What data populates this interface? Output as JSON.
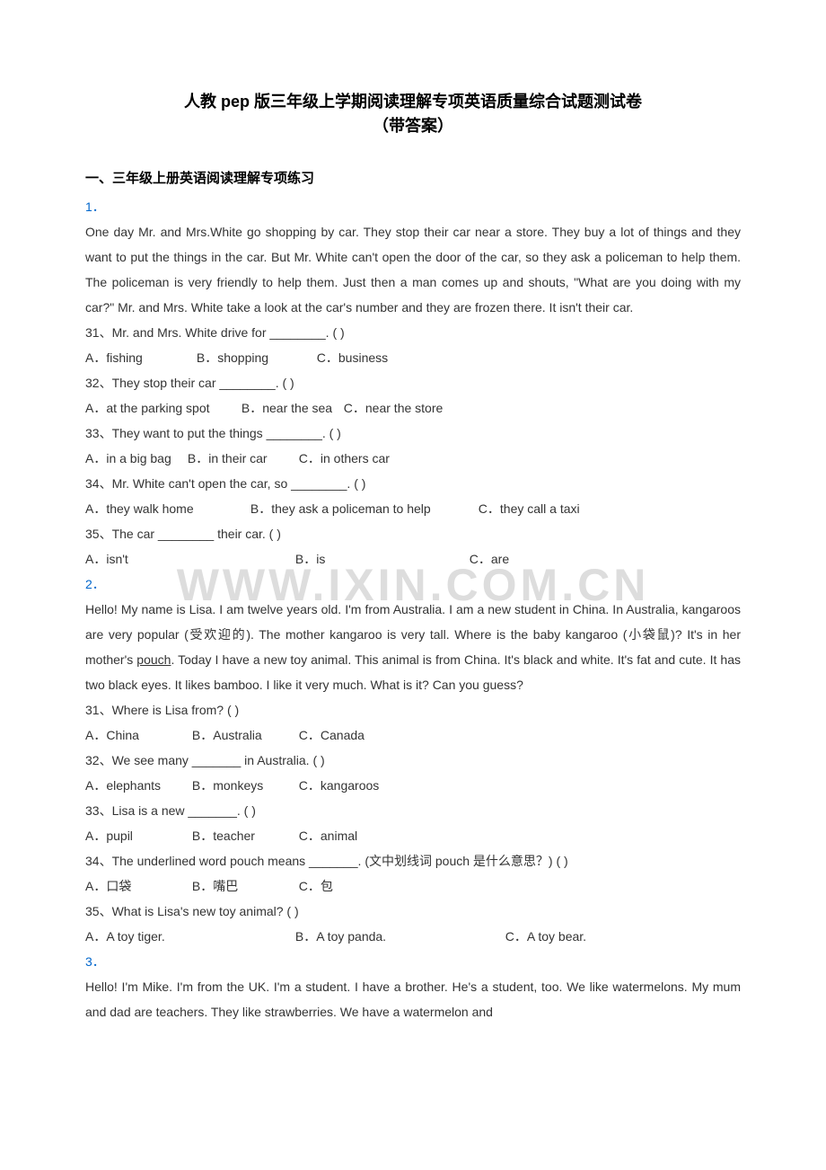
{
  "title_line1": "人教 pep 版三年级上学期阅读理解专项英语质量综合试题测试卷",
  "title_line2": "（带答案）",
  "section_heading": "一、三年级上册英语阅读理解专项练习",
  "watermark": "WWW.IXIN.COM.CN",
  "q1": {
    "num": "1．",
    "passage": "One day Mr. and Mrs.White go shopping by car. They stop their car near a store. They buy a lot of things and they want to put the things in the car. But Mr. White can't open the door of the car, so they ask a policeman to help them. The policeman is very friendly to help them. Just then a man comes up and shouts, \"What are you doing with my car?\" Mr. and Mrs. White take a look at the car's number and they are frozen there. It isn't their car.",
    "items": [
      {
        "q": "31、Mr. and Mrs. White drive for ________. (    )",
        "a": "A．fishing",
        "b": "B．shopping",
        "c": "C．business",
        "wa": "120px",
        "wb": "130px",
        "wc": ""
      },
      {
        "q": "32、They stop their car ________. (    )",
        "a": "A．at the parking spot",
        "b": "B．near the sea",
        "c": "C．near the store",
        "wa": "170px",
        "wb": "110px",
        "wc": ""
      },
      {
        "q": "33、They want to put the things ________. (    )",
        "a": "A．in a big bag",
        "b": "B．in their car",
        "c": "C．in others car",
        "wa": "110px",
        "wb": "120px",
        "wc": ""
      },
      {
        "q": "34、Mr. White can't open the car, so ________. (    )",
        "a": "A．they walk home",
        "b": "B．they ask a policeman to help",
        "c": "C．they call a taxi",
        "wa": "180px",
        "wb": "250px",
        "wc": ""
      },
      {
        "q": "35、The car ________ their car. (    )",
        "a": "A．isn't",
        "b": "B．is",
        "c": "C．are",
        "wa": "230px",
        "wb": "190px",
        "wc": ""
      }
    ]
  },
  "q2": {
    "num": "2．",
    "passage_pre": "Hello! My name is Lisa. I am twelve years old. I'm from Australia. I am a new student in China. In Australia, kangaroos are very popular (受欢迎的). The mother kangaroo is very tall. Where is the baby kangaroo (小袋鼠)? It's in her mother's ",
    "passage_u": "pouch",
    "passage_post": ". Today I have a new toy animal. This animal is from China. It's black and white. It's fat and cute. It has two black eyes. It likes bamboo. I like it very much. What is it? Can you guess?",
    "items": [
      {
        "q": "31、Where is Lisa from? (    )",
        "a": "A．China",
        "b": "B．Australia",
        "c": "C．Canada",
        "wa": "115px",
        "wb": "115px",
        "wc": ""
      },
      {
        "q": "32、We see many _______ in Australia. (    )",
        "a": "A．elephants",
        "b": "B．monkeys",
        "c": "C．kangaroos",
        "wa": "115px",
        "wb": "115px",
        "wc": ""
      },
      {
        "q": "33、Lisa is a new _______. (    )",
        "a": "A．pupil",
        "b": "B．teacher",
        "c": "C．animal",
        "wa": "115px",
        "wb": "115px",
        "wc": ""
      },
      {
        "q": "34、The underlined word pouch means _______. (文中划线词 pouch 是什么意思？) (    )",
        "a": "A．口袋",
        "b": "B．嘴巴",
        "c": "C．包",
        "wa": "115px",
        "wb": "115px",
        "wc": ""
      },
      {
        "q": "35、What is Lisa's new toy animal? (    )",
        "a": "A．A toy tiger.",
        "b": "B．A toy panda.",
        "c": "C．A toy bear.",
        "wa": "230px",
        "wb": "230px",
        "wc": ""
      }
    ]
  },
  "q3": {
    "num": "3．",
    "passage": "Hello! I'm Mike. I'm from the UK. I'm a student. I have a brother. He's a student, too. We like watermelons. My mum and dad are teachers. They like strawberries. We have a watermelon and"
  },
  "colors": {
    "text": "#333333",
    "link": "#0066cc",
    "watermark": "#dddddd",
    "background": "#ffffff"
  }
}
